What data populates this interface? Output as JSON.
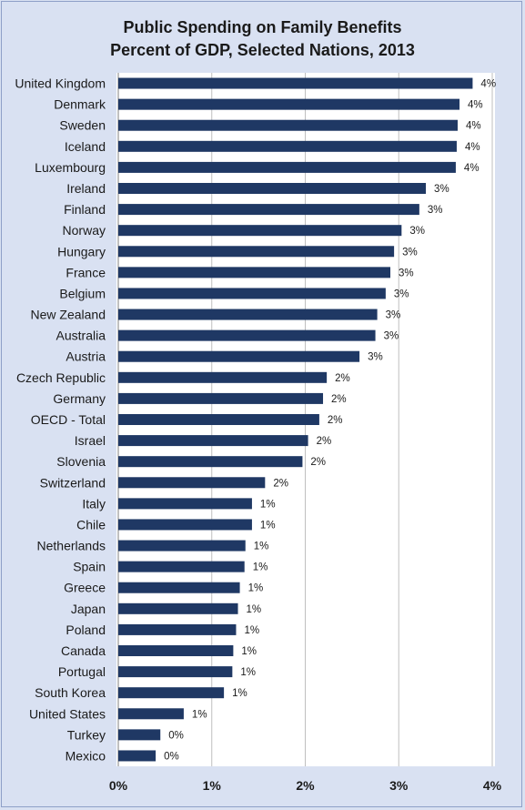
{
  "chart_data": {
    "type": "bar",
    "orientation": "horizontal",
    "title": "Public Spending on Family Benefits",
    "subtitle": "Percent of GDP, Selected Nations, 2013",
    "xlabel": "",
    "ylabel": "",
    "xlim": [
      0,
      4
    ],
    "x_ticks": [
      "0%",
      "1%",
      "2%",
      "3%",
      "4%"
    ],
    "grid": "vertical",
    "bar_color": "#1f3864",
    "categories": [
      "United Kingdom",
      "Denmark",
      "Sweden",
      "Iceland",
      "Luxembourg",
      "Ireland",
      "Finland",
      "Norway",
      "Hungary",
      "France",
      "Belgium",
      "New Zealand",
      "Australia",
      "Austria",
      "Czech Republic",
      "Germany",
      "OECD - Total",
      "Israel",
      "Slovenia",
      "Switzerland",
      "Italy",
      "Chile",
      "Netherlands",
      "Spain",
      "Greece",
      "Japan",
      "Poland",
      "Canada",
      "Portugal",
      "South Korea",
      "United States",
      "Turkey",
      "Mexico"
    ],
    "values": [
      3.79,
      3.65,
      3.63,
      3.62,
      3.61,
      3.29,
      3.22,
      3.03,
      2.95,
      2.91,
      2.86,
      2.77,
      2.75,
      2.58,
      2.23,
      2.19,
      2.15,
      2.03,
      1.97,
      1.57,
      1.43,
      1.43,
      1.36,
      1.35,
      1.3,
      1.28,
      1.26,
      1.23,
      1.22,
      1.13,
      0.7,
      0.45,
      0.4
    ],
    "value_labels": [
      "4%",
      "4%",
      "4%",
      "4%",
      "4%",
      "3%",
      "3%",
      "3%",
      "3%",
      "3%",
      "3%",
      "3%",
      "3%",
      "3%",
      "2%",
      "2%",
      "2%",
      "2%",
      "2%",
      "2%",
      "1%",
      "1%",
      "1%",
      "1%",
      "1%",
      "1%",
      "1%",
      "1%",
      "1%",
      "1%",
      "1%",
      "0%",
      "0%"
    ]
  }
}
